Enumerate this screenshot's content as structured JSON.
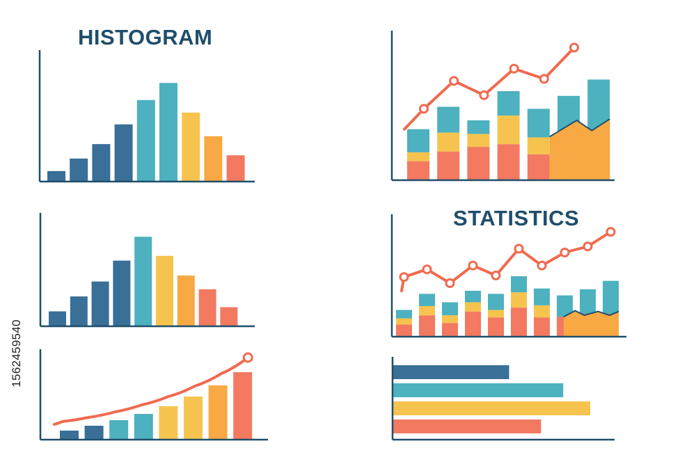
{
  "titles": {
    "histogram": "HISTOGRAM",
    "statistics": "STATISTICS"
  },
  "stock_id": "1562459540",
  "colors": {
    "axis": "#1f4e6b",
    "dark_blue": "#3a6f98",
    "teal": "#4db1bf",
    "yellow": "#f6c44e",
    "orange": "#f8a943",
    "coral": "#f37961",
    "line": "#f06a4f"
  },
  "chart_data": [
    {
      "id": "histogram-top-left",
      "type": "bar",
      "values": [
        16,
        35,
        57,
        87,
        124,
        150,
        105,
        69,
        40
      ],
      "colors": [
        "dark_blue",
        "dark_blue",
        "dark_blue",
        "dark_blue",
        "teal",
        "teal",
        "yellow",
        "orange",
        "coral"
      ],
      "ylim": [
        0,
        200
      ]
    },
    {
      "id": "histogram-middle-left",
      "type": "bar",
      "values": [
        25,
        50,
        75,
        110,
        150,
        118,
        85,
        62,
        32
      ],
      "colors": [
        "dark_blue",
        "dark_blue",
        "dark_blue",
        "dark_blue",
        "teal",
        "yellow",
        "orange",
        "coral",
        "coral"
      ],
      "ylim": [
        0,
        190
      ]
    },
    {
      "id": "growth-bottom-left",
      "type": "bar",
      "values": [
        13,
        20,
        28,
        37,
        48,
        62,
        78,
        97
      ],
      "colors": [
        "dark_blue",
        "dark_blue",
        "teal",
        "teal",
        "yellow",
        "yellow",
        "orange",
        "coral"
      ],
      "line": [
        26,
        32,
        40,
        50,
        62,
        77,
        95,
        118
      ],
      "ylim": [
        0,
        130
      ]
    },
    {
      "id": "stacked-top-right",
      "type": "bar",
      "stacked": true,
      "categories_count": 7,
      "series": [
        {
          "color": "coral",
          "values": [
            28,
            42,
            49,
            53,
            38,
            53,
            74
          ]
        },
        {
          "color": "yellow",
          "values": [
            13,
            28,
            19,
            42,
            25,
            0,
            0
          ]
        },
        {
          "color": "teal",
          "values": [
            34,
            38,
            20,
            36,
            42,
            71,
            74
          ]
        }
      ],
      "highlight_fill": {
        "color": "orange",
        "points": [
          [
            5,
            64
          ],
          [
            5.9,
            88
          ],
          [
            6.4,
            73
          ],
          [
            7,
            90
          ]
        ]
      },
      "line": [
        105,
        146,
        125,
        164,
        149,
        195
      ],
      "ylim": [
        0,
        220
      ]
    },
    {
      "id": "stacked-middle-right",
      "type": "bar",
      "stacked": true,
      "categories_count": 10,
      "series": [
        {
          "color": "coral",
          "values": [
            16,
            28,
            18,
            33,
            25,
            38,
            25,
            26,
            30,
            30
          ]
        },
        {
          "color": "yellow",
          "values": [
            8,
            12,
            10,
            12,
            10,
            20,
            16,
            0,
            0,
            0
          ]
        },
        {
          "color": "teal",
          "values": [
            11,
            16,
            17,
            15,
            21,
            21,
            22,
            28,
            32,
            43
          ]
        }
      ],
      "highlight_fill": {
        "color": "orange",
        "points": [
          [
            7.6,
            26
          ],
          [
            8.1,
            34
          ],
          [
            8.5,
            28
          ],
          [
            9.1,
            33
          ],
          [
            9.6,
            28
          ],
          [
            10.2,
            33
          ]
        ]
      },
      "line": [
        78,
        88,
        70,
        93,
        80,
        115,
        93,
        110,
        118,
        137
      ],
      "ylim": [
        0,
        160
      ]
    },
    {
      "id": "horizontal-bottom-right",
      "type": "bar",
      "orientation": "horizontal",
      "values": [
        168,
        246,
        285,
        214
      ],
      "colors": [
        "dark_blue",
        "teal",
        "yellow",
        "coral"
      ],
      "xlim": [
        0,
        320
      ]
    }
  ]
}
